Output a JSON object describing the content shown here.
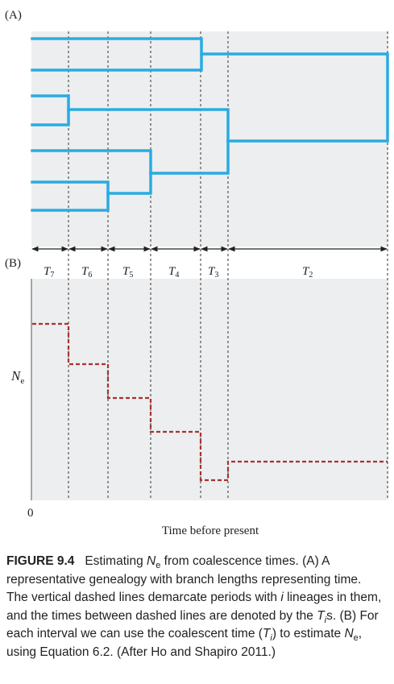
{
  "panel_a_label": "(A)",
  "panel_b_label": "(B)",
  "interval_labels": [
    {
      "main": "T",
      "sub": "7"
    },
    {
      "main": "T",
      "sub": "6"
    },
    {
      "main": "T",
      "sub": "5"
    },
    {
      "main": "T",
      "sub": "4"
    },
    {
      "main": "T",
      "sub": "3"
    },
    {
      "main": "T",
      "sub": "2"
    }
  ],
  "ne_label": {
    "main": "N",
    "sub": "e"
  },
  "origin_label": "0",
  "x_axis_label": "Time before present",
  "colors": {
    "tree": "#29abe2",
    "ne_line": "#a83232",
    "panel_bg": "#eceeef",
    "arrows": "#222222"
  },
  "caption": {
    "figure_label": "FIGURE 9.4",
    "segments": [
      {
        "t": "Estimating ",
        "s": "n"
      },
      {
        "t": "N",
        "s": "i"
      },
      {
        "t": "e",
        "s": "sub"
      },
      {
        "t": " from coalescence times. (A) A representative genealogy with branch lengths representing time. The vertical dashed lines demarcate periods with ",
        "s": "n"
      },
      {
        "t": "i",
        "s": "i"
      },
      {
        "t": " lineages in them, and the times between dashed lines are denoted by the ",
        "s": "n"
      },
      {
        "t": "T",
        "s": "i"
      },
      {
        "t": "i",
        "s": "isub"
      },
      {
        "t": "s. (B) For each interval we can use the coalescent time (",
        "s": "n"
      },
      {
        "t": "T",
        "s": "i"
      },
      {
        "t": "i",
        "s": "isub"
      },
      {
        "t": ") to estimate ",
        "s": "n"
      },
      {
        "t": "N",
        "s": "i"
      },
      {
        "t": "e",
        "s": "sub"
      },
      {
        "t": ", using Equation 6.2. (After Ho and Shapiro 2011.)",
        "s": "n"
      }
    ]
  }
}
